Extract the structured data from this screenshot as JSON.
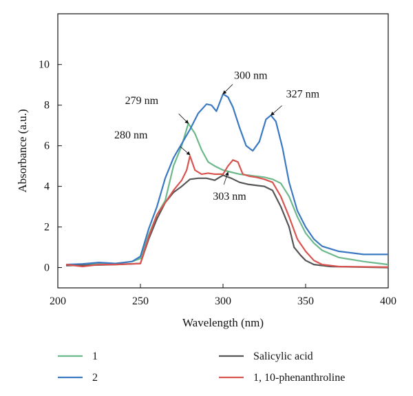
{
  "chart_data": {
    "type": "line",
    "title": "",
    "xlabel": "Wavelength (nm)",
    "ylabel": "Absorbance (a.u.)",
    "xlim": [
      200,
      400
    ],
    "ylim": [
      -1,
      12.5
    ],
    "x_ticks": [
      "200",
      "250",
      "300",
      "350",
      "400"
    ],
    "y_ticks": [
      "0",
      "2",
      "4",
      "6",
      "8",
      "10"
    ],
    "grid": false,
    "legend_position": "bottom",
    "series": [
      {
        "name": "1",
        "color": "#6bb88a",
        "points": [
          [
            205,
            0.12
          ],
          [
            215,
            0.1
          ],
          [
            225,
            0.2
          ],
          [
            235,
            0.2
          ],
          [
            245,
            0.3
          ],
          [
            250,
            0.45
          ],
          [
            255,
            1.6
          ],
          [
            260,
            2.6
          ],
          [
            265,
            3.3
          ],
          [
            270,
            5.0
          ],
          [
            275,
            6.0
          ],
          [
            279,
            7.1
          ],
          [
            283,
            6.6
          ],
          [
            287,
            5.8
          ],
          [
            291,
            5.2
          ],
          [
            295,
            5.0
          ],
          [
            300,
            4.8
          ],
          [
            305,
            4.7
          ],
          [
            310,
            4.6
          ],
          [
            315,
            4.55
          ],
          [
            320,
            4.5
          ],
          [
            325,
            4.45
          ],
          [
            330,
            4.35
          ],
          [
            335,
            4.15
          ],
          [
            340,
            3.5
          ],
          [
            345,
            2.5
          ],
          [
            350,
            1.7
          ],
          [
            355,
            1.2
          ],
          [
            360,
            0.85
          ],
          [
            370,
            0.5
          ],
          [
            385,
            0.3
          ],
          [
            400,
            0.15
          ]
        ]
      },
      {
        "name": "2",
        "color": "#3a78c2",
        "points": [
          [
            205,
            0.15
          ],
          [
            215,
            0.18
          ],
          [
            225,
            0.25
          ],
          [
            235,
            0.2
          ],
          [
            245,
            0.3
          ],
          [
            250,
            0.55
          ],
          [
            255,
            1.9
          ],
          [
            260,
            3.0
          ],
          [
            265,
            4.4
          ],
          [
            270,
            5.4
          ],
          [
            275,
            6.1
          ],
          [
            280,
            6.8
          ],
          [
            285,
            7.6
          ],
          [
            290,
            8.05
          ],
          [
            293,
            8.0
          ],
          [
            296,
            7.7
          ],
          [
            300,
            8.55
          ],
          [
            303,
            8.4
          ],
          [
            306,
            7.9
          ],
          [
            310,
            6.9
          ],
          [
            314,
            6.0
          ],
          [
            318,
            5.75
          ],
          [
            322,
            6.2
          ],
          [
            326,
            7.3
          ],
          [
            329,
            7.5
          ],
          [
            332,
            7.2
          ],
          [
            336,
            5.9
          ],
          [
            340,
            4.2
          ],
          [
            345,
            2.8
          ],
          [
            350,
            2.0
          ],
          [
            355,
            1.4
          ],
          [
            360,
            1.05
          ],
          [
            370,
            0.8
          ],
          [
            385,
            0.65
          ],
          [
            400,
            0.65
          ]
        ]
      },
      {
        "name": "Salicylic acid",
        "color": "#555555",
        "points": [
          [
            205,
            0.1
          ],
          [
            220,
            0.12
          ],
          [
            235,
            0.15
          ],
          [
            250,
            0.2
          ],
          [
            255,
            1.4
          ],
          [
            260,
            2.4
          ],
          [
            265,
            3.2
          ],
          [
            270,
            3.7
          ],
          [
            275,
            4.0
          ],
          [
            280,
            4.35
          ],
          [
            285,
            4.4
          ],
          [
            290,
            4.4
          ],
          [
            295,
            4.3
          ],
          [
            300,
            4.55
          ],
          [
            305,
            4.4
          ],
          [
            310,
            4.2
          ],
          [
            315,
            4.1
          ],
          [
            320,
            4.05
          ],
          [
            325,
            4.0
          ],
          [
            330,
            3.8
          ],
          [
            335,
            3.0
          ],
          [
            340,
            2.0
          ],
          [
            343,
            1.0
          ],
          [
            347,
            0.6
          ],
          [
            350,
            0.35
          ],
          [
            355,
            0.15
          ],
          [
            365,
            0.05
          ],
          [
            400,
            0.0
          ]
        ]
      },
      {
        "name": "1, 10-phenanthroline",
        "color": "#d9534f",
        "points": [
          [
            205,
            0.15
          ],
          [
            215,
            0.05
          ],
          [
            225,
            0.15
          ],
          [
            235,
            0.15
          ],
          [
            250,
            0.2
          ],
          [
            255,
            1.5
          ],
          [
            260,
            2.6
          ],
          [
            265,
            3.2
          ],
          [
            270,
            3.8
          ],
          [
            275,
            4.3
          ],
          [
            278,
            4.8
          ],
          [
            280,
            5.5
          ],
          [
            283,
            4.8
          ],
          [
            287,
            4.6
          ],
          [
            291,
            4.65
          ],
          [
            295,
            4.6
          ],
          [
            300,
            4.6
          ],
          [
            303,
            5.0
          ],
          [
            306,
            5.3
          ],
          [
            309,
            5.2
          ],
          [
            312,
            4.6
          ],
          [
            316,
            4.5
          ],
          [
            320,
            4.45
          ],
          [
            325,
            4.35
          ],
          [
            330,
            4.2
          ],
          [
            335,
            3.5
          ],
          [
            340,
            2.5
          ],
          [
            345,
            1.4
          ],
          [
            350,
            0.8
          ],
          [
            355,
            0.35
          ],
          [
            360,
            0.15
          ],
          [
            370,
            0.05
          ],
          [
            400,
            0.02
          ]
        ]
      }
    ],
    "annotations": [
      {
        "text": "279 nm",
        "x": 279,
        "y": 7.1
      },
      {
        "text": "300 nm",
        "x": 300,
        "y": 8.55
      },
      {
        "text": "327 nm",
        "x": 329,
        "y": 7.5
      },
      {
        "text": "280 nm",
        "x": 280,
        "y": 5.55
      },
      {
        "text": "303 nm",
        "x": 303,
        "y": 4.7
      }
    ]
  }
}
